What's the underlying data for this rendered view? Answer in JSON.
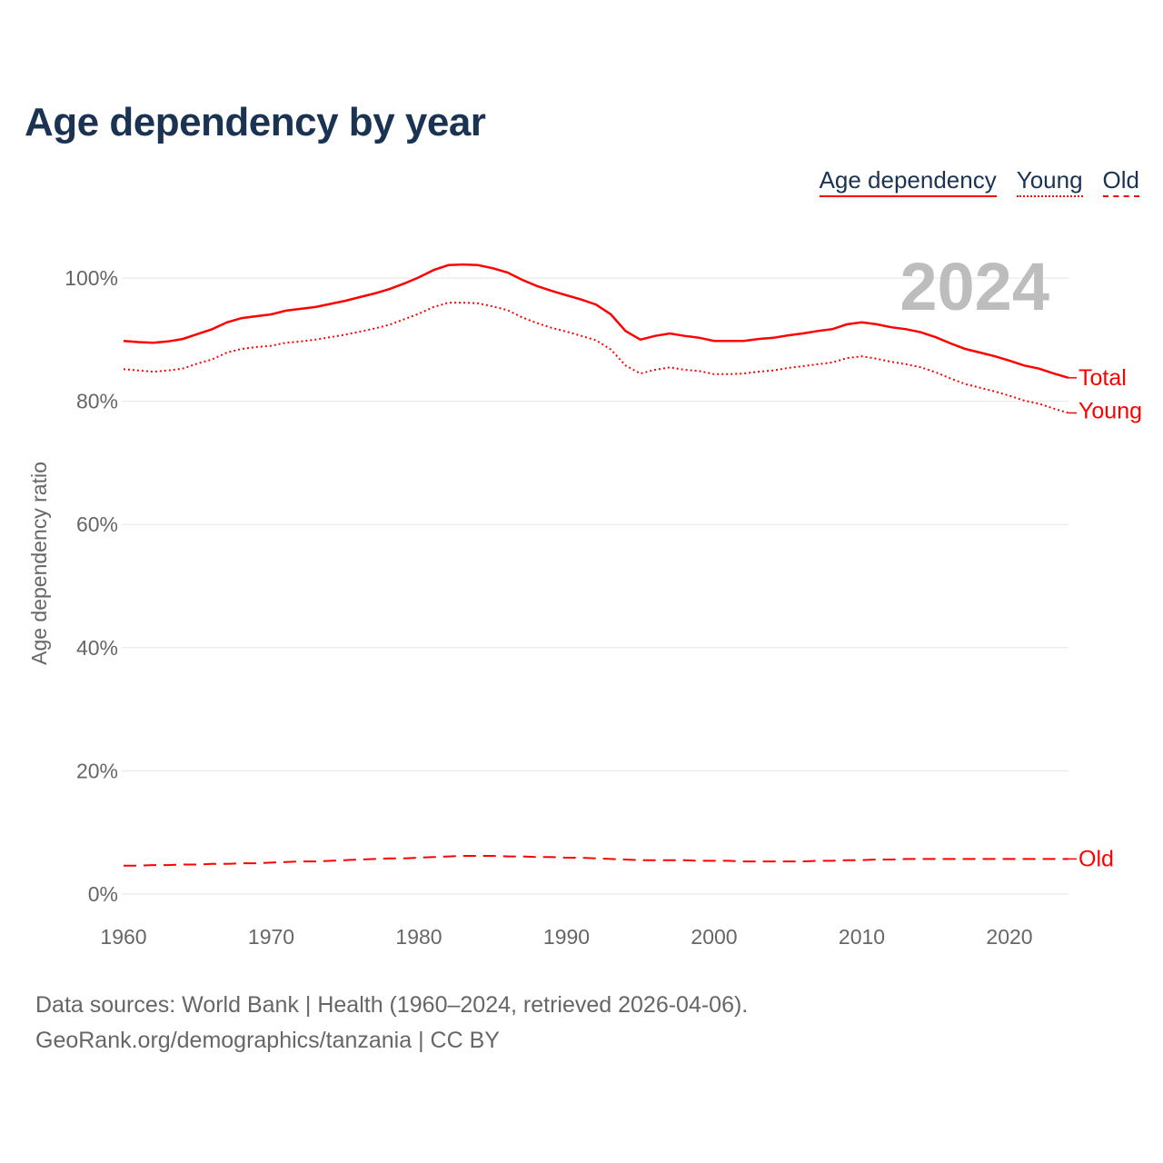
{
  "header": {
    "title": "Age dependency by year"
  },
  "legend": {
    "items": [
      "Age dependency",
      "Young",
      "Old"
    ]
  },
  "footer": {
    "line1": "Data sources: World Bank | Health (1960–2024, retrieved 2026-04-06).",
    "line2": "GeoRank.org/demographics/tanzania | CC BY"
  },
  "chart_data": {
    "type": "line",
    "title": "Age dependency by year",
    "ylabel": "Age dependency ratio",
    "xlabel": "",
    "year_watermark": "2024",
    "xlim": [
      1960,
      2024
    ],
    "ylim": [
      0,
      100
    ],
    "x_ticks": [
      1960,
      1970,
      1980,
      1990,
      2000,
      2010,
      2020
    ],
    "y_ticks": [
      0,
      20,
      40,
      60,
      80,
      100
    ],
    "y_tick_labels": [
      "0%",
      "20%",
      "40%",
      "60%",
      "80%",
      "100%"
    ],
    "grid": true,
    "color": "#ff0000",
    "x": [
      1960,
      1961,
      1962,
      1963,
      1964,
      1965,
      1966,
      1967,
      1968,
      1969,
      1970,
      1971,
      1972,
      1973,
      1974,
      1975,
      1976,
      1977,
      1978,
      1979,
      1980,
      1981,
      1982,
      1983,
      1984,
      1985,
      1986,
      1987,
      1988,
      1989,
      1990,
      1991,
      1992,
      1993,
      1994,
      1995,
      1996,
      1997,
      1998,
      1999,
      2000,
      2001,
      2002,
      2003,
      2004,
      2005,
      2006,
      2007,
      2008,
      2009,
      2010,
      2011,
      2012,
      2013,
      2014,
      2015,
      2016,
      2017,
      2018,
      2019,
      2020,
      2021,
      2022,
      2023,
      2024
    ],
    "series": [
      {
        "name": "Total",
        "style": "solid",
        "values": [
          89.8,
          89.6,
          89.5,
          89.7,
          90.1,
          90.9,
          91.7,
          92.8,
          93.5,
          93.8,
          94.1,
          94.7,
          95.0,
          95.3,
          95.8,
          96.3,
          96.9,
          97.5,
          98.2,
          99.1,
          100.1,
          101.3,
          102.1,
          102.2,
          102.1,
          101.6,
          100.9,
          99.7,
          98.7,
          97.9,
          97.2,
          96.5,
          95.7,
          94.1,
          91.4,
          90.0,
          90.6,
          91.0,
          90.6,
          90.3,
          89.8,
          89.8,
          89.8,
          90.1,
          90.3,
          90.7,
          91.0,
          91.4,
          91.7,
          92.5,
          92.8,
          92.5,
          92.0,
          91.7,
          91.2,
          90.4,
          89.4,
          88.5,
          87.9,
          87.3,
          86.6,
          85.8,
          85.3,
          84.5,
          83.8
        ]
      },
      {
        "name": "Young",
        "style": "dotted",
        "values": [
          85.2,
          85.0,
          84.8,
          85.0,
          85.3,
          86.1,
          86.8,
          87.9,
          88.5,
          88.8,
          89.0,
          89.5,
          89.7,
          90.0,
          90.4,
          90.8,
          91.3,
          91.8,
          92.4,
          93.3,
          94.2,
          95.3,
          96.0,
          96.0,
          95.9,
          95.4,
          94.8,
          93.6,
          92.7,
          91.9,
          91.3,
          90.6,
          89.9,
          88.4,
          85.8,
          84.5,
          85.1,
          85.5,
          85.1,
          84.9,
          84.4,
          84.4,
          84.5,
          84.8,
          85.0,
          85.4,
          85.7,
          86.0,
          86.3,
          87.0,
          87.3,
          86.9,
          86.4,
          86.0,
          85.5,
          84.7,
          83.7,
          82.8,
          82.2,
          81.6,
          80.9,
          80.1,
          79.6,
          78.8,
          78.1
        ]
      },
      {
        "name": "Old",
        "style": "dashed",
        "values": [
          4.6,
          4.6,
          4.7,
          4.7,
          4.8,
          4.8,
          4.9,
          4.9,
          5.0,
          5.0,
          5.1,
          5.2,
          5.3,
          5.3,
          5.4,
          5.5,
          5.6,
          5.7,
          5.8,
          5.8,
          5.9,
          6.0,
          6.1,
          6.2,
          6.2,
          6.2,
          6.1,
          6.1,
          6.0,
          6.0,
          5.9,
          5.9,
          5.8,
          5.7,
          5.6,
          5.5,
          5.5,
          5.5,
          5.5,
          5.4,
          5.4,
          5.4,
          5.3,
          5.3,
          5.3,
          5.3,
          5.3,
          5.4,
          5.4,
          5.5,
          5.5,
          5.6,
          5.6,
          5.7,
          5.7,
          5.7,
          5.7,
          5.7,
          5.7,
          5.7,
          5.7,
          5.7,
          5.7,
          5.7,
          5.7
        ]
      }
    ]
  }
}
